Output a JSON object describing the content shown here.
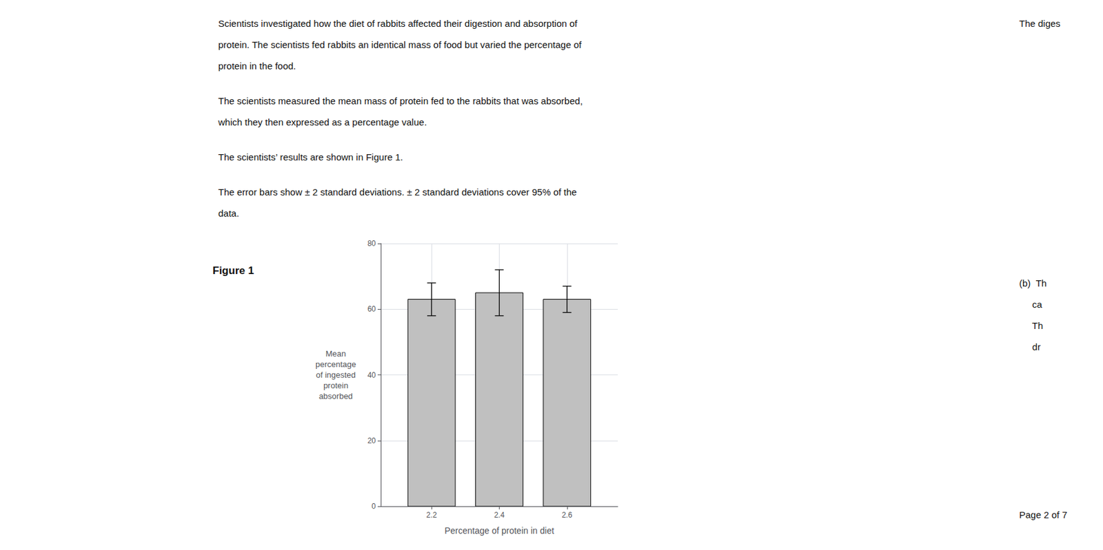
{
  "chart_data": {
    "type": "bar",
    "title": "Figure 1",
    "x": [
      2.2,
      2.4,
      2.6
    ],
    "values": [
      63,
      65,
      63
    ],
    "errors": [
      5,
      7,
      4
    ],
    "color": "#c0c0c0",
    "xlim": [
      2.05,
      2.75
    ],
    "xticks": [
      2.2,
      2.4,
      2.6
    ],
    "ylim": [
      0,
      80
    ],
    "yticks": [
      0,
      20,
      40,
      60,
      80
    ],
    "xlabel": "Percentage of protein in diet",
    "ylabel": "Mean\npercentage\nof ingested\nprotein\nabsorbed",
    "grid": true,
    "annotations": [
      "Scientists investigated how the diet of rabbits affected their digestion and absorption of\nprotein. The scientists fed rabbits an identical mass of food but varied the percentage of\nprotein in the food.",
      "The scientists measured the mean mass of protein fed to the rabbits that was absorbed,\nwhich they then expressed as a percentage value.",
      "The scientists’ results are shown in Figure 1.",
      "The error bars show ± 2 standard deviations. ± 2 standard deviations cover 95% of the\ndata.",
      "The diges",
      "(b)  Th\n     ca\n     Th\n     dr",
      "Page 2 of 7"
    ]
  }
}
